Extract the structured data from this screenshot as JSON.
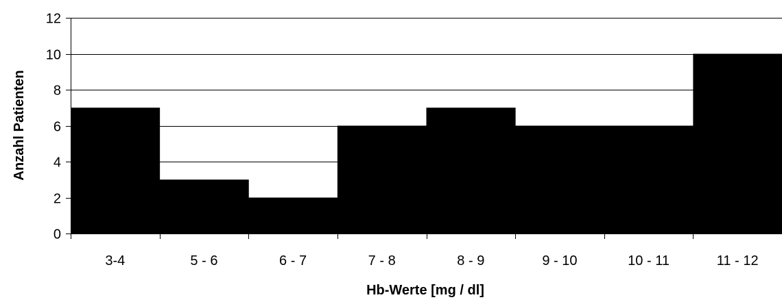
{
  "chart_data": {
    "type": "bar",
    "categories": [
      "3-4",
      "5 - 6",
      "6 - 7",
      "7 - 8",
      "8 - 9",
      "9 - 10",
      "10 - 11",
      "11 - 12"
    ],
    "values": [
      7,
      3,
      2,
      6,
      7,
      6,
      6,
      10
    ],
    "xlabel": "Hb-Werte [mg / dl]",
    "ylabel": "Anzahl Patienten",
    "ylim": [
      0,
      12
    ],
    "yticks": [
      0,
      2,
      4,
      6,
      8,
      10,
      12
    ],
    "grid": true,
    "legend": "none",
    "bar_color": "#000000",
    "background_color": "#ffffff"
  }
}
